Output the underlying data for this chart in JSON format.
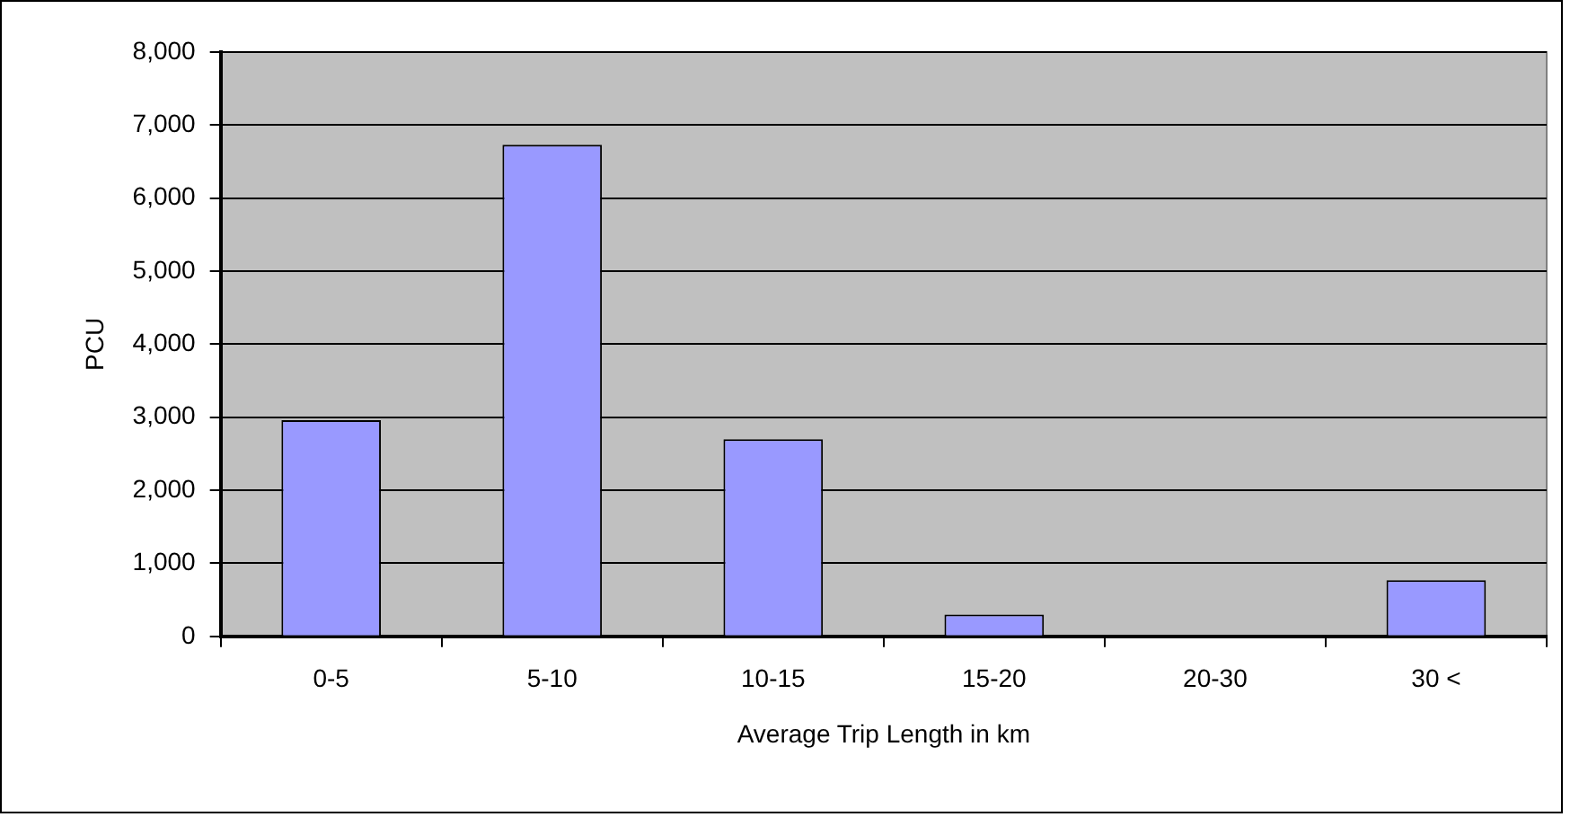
{
  "chart_data": {
    "type": "bar",
    "xlabel": "Average Trip Length in km",
    "ylabel": "PCU",
    "categories": [
      "0-5",
      "5-10",
      "10-15",
      "15-20",
      "20-30",
      "30 <"
    ],
    "values": [
      2960,
      6730,
      2700,
      300,
      0,
      770
    ],
    "color": "#9999ff",
    "ylim": [
      0,
      8000
    ],
    "yticks": [
      {
        "value": 0,
        "label": "0"
      },
      {
        "value": 1000,
        "label": "1,000"
      },
      {
        "value": 2000,
        "label": "2,000"
      },
      {
        "value": 3000,
        "label": "3,000"
      },
      {
        "value": 4000,
        "label": "4,000"
      },
      {
        "value": 5000,
        "label": "5,000"
      },
      {
        "value": 6000,
        "label": "6,000"
      },
      {
        "value": 7000,
        "label": "7,000"
      },
      {
        "value": 8000,
        "label": "8,000"
      }
    ],
    "grid": "y",
    "legend": false
  }
}
